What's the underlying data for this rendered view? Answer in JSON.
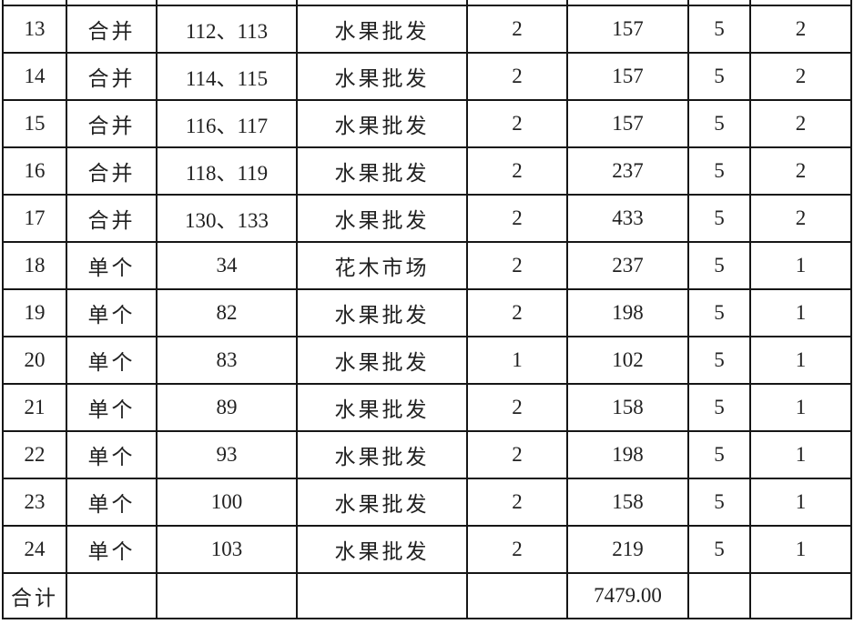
{
  "table": {
    "rows": [
      {
        "no": "13",
        "type": "合并",
        "stalls": "112、113",
        "market": "水果批发",
        "count": "2",
        "amount": "157",
        "score1": "5",
        "score2": "2"
      },
      {
        "no": "14",
        "type": "合并",
        "stalls": "114、115",
        "market": "水果批发",
        "count": "2",
        "amount": "157",
        "score1": "5",
        "score2": "2"
      },
      {
        "no": "15",
        "type": "合并",
        "stalls": "116、117",
        "market": "水果批发",
        "count": "2",
        "amount": "157",
        "score1": "5",
        "score2": "2"
      },
      {
        "no": "16",
        "type": "合并",
        "stalls": "118、119",
        "market": "水果批发",
        "count": "2",
        "amount": "237",
        "score1": "5",
        "score2": "2"
      },
      {
        "no": "17",
        "type": "合并",
        "stalls": "130、133",
        "market": "水果批发",
        "count": "2",
        "amount": "433",
        "score1": "5",
        "score2": "2"
      },
      {
        "no": "18",
        "type": "单个",
        "stalls": "34",
        "market": "花木市场",
        "count": "2",
        "amount": "237",
        "score1": "5",
        "score2": "1"
      },
      {
        "no": "19",
        "type": "单个",
        "stalls": "82",
        "market": "水果批发",
        "count": "2",
        "amount": "198",
        "score1": "5",
        "score2": "1"
      },
      {
        "no": "20",
        "type": "单个",
        "stalls": "83",
        "market": "水果批发",
        "count": "1",
        "amount": "102",
        "score1": "5",
        "score2": "1"
      },
      {
        "no": "21",
        "type": "单个",
        "stalls": "89",
        "market": "水果批发",
        "count": "2",
        "amount": "158",
        "score1": "5",
        "score2": "1"
      },
      {
        "no": "22",
        "type": "单个",
        "stalls": "93",
        "market": "水果批发",
        "count": "2",
        "amount": "198",
        "score1": "5",
        "score2": "1"
      },
      {
        "no": "23",
        "type": "单个",
        "stalls": "100",
        "market": "水果批发",
        "count": "2",
        "amount": "158",
        "score1": "5",
        "score2": "1"
      },
      {
        "no": "24",
        "type": "单个",
        "stalls": "103",
        "market": "水果批发",
        "count": "2",
        "amount": "219",
        "score1": "5",
        "score2": "1"
      }
    ],
    "total_row": {
      "label": "合计",
      "amount": "7479.00"
    },
    "colors": {
      "red_text": "#e5353b",
      "border": "#161616",
      "text": "#212121"
    }
  }
}
